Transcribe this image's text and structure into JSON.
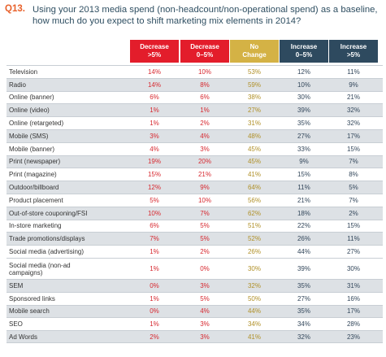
{
  "question": {
    "number": "Q13.",
    "text": "Using your 2013 media spend (non-headcount/non-operational spend) as a baseline, how much do you expect to shift marketing mix elements in 2014?"
  },
  "colors": {
    "decrease": "#e31d2b",
    "no_change": "#d4b245",
    "increase": "#2e4a5f",
    "row_shade": "#dde1e5"
  },
  "chart_data": {
    "type": "table",
    "columns": [
      "Decrease >5%",
      "Decrease 0–5%",
      "No Change",
      "Increase 0–5%",
      "Increase >5%"
    ],
    "rows": [
      {
        "label": "Television",
        "values": [
          "14%",
          "10%",
          "53%",
          "12%",
          "11%"
        ]
      },
      {
        "label": "Radio",
        "values": [
          "14%",
          "8%",
          "59%",
          "10%",
          "9%"
        ]
      },
      {
        "label": "Online (banner)",
        "values": [
          "6%",
          "6%",
          "38%",
          "30%",
          "21%"
        ]
      },
      {
        "label": "Online (video)",
        "values": [
          "1%",
          "1%",
          "27%",
          "39%",
          "32%"
        ]
      },
      {
        "label": "Online (retargeted)",
        "values": [
          "1%",
          "2%",
          "31%",
          "35%",
          "32%"
        ]
      },
      {
        "label": "Mobile (SMS)",
        "values": [
          "3%",
          "4%",
          "48%",
          "27%",
          "17%"
        ]
      },
      {
        "label": "Mobile (banner)",
        "values": [
          "4%",
          "3%",
          "45%",
          "33%",
          "15%"
        ]
      },
      {
        "label": "Print (newspaper)",
        "values": [
          "19%",
          "20%",
          "45%",
          "9%",
          "7%"
        ]
      },
      {
        "label": "Print (magazine)",
        "values": [
          "15%",
          "21%",
          "41%",
          "15%",
          "8%"
        ]
      },
      {
        "label": "Outdoor/billboard",
        "values": [
          "12%",
          "9%",
          "64%",
          "11%",
          "5%"
        ]
      },
      {
        "label": "Product placement",
        "values": [
          "5%",
          "10%",
          "56%",
          "21%",
          "7%"
        ]
      },
      {
        "label": "Out-of-store couponing/FSI",
        "values": [
          "10%",
          "7%",
          "62%",
          "18%",
          "2%"
        ]
      },
      {
        "label": "In-store marketing",
        "values": [
          "6%",
          "5%",
          "51%",
          "22%",
          "15%"
        ]
      },
      {
        "label": "Trade promotions/displays",
        "values": [
          "7%",
          "5%",
          "52%",
          "26%",
          "11%"
        ]
      },
      {
        "label": "Social media (advertising)",
        "values": [
          "1%",
          "2%",
          "26%",
          "44%",
          "27%"
        ]
      },
      {
        "label": "Social media (non-ad campaigns)",
        "values": [
          "1%",
          "0%",
          "30%",
          "39%",
          "30%"
        ]
      },
      {
        "label": "SEM",
        "values": [
          "0%",
          "3%",
          "32%",
          "35%",
          "31%"
        ]
      },
      {
        "label": "Sponsored links",
        "values": [
          "1%",
          "5%",
          "50%",
          "27%",
          "16%"
        ]
      },
      {
        "label": "Mobile search",
        "values": [
          "0%",
          "4%",
          "44%",
          "35%",
          "17%"
        ]
      },
      {
        "label": "SEO",
        "values": [
          "1%",
          "3%",
          "34%",
          "34%",
          "28%"
        ]
      },
      {
        "label": "Ad Words",
        "values": [
          "2%",
          "3%",
          "41%",
          "32%",
          "23%"
        ]
      }
    ]
  }
}
